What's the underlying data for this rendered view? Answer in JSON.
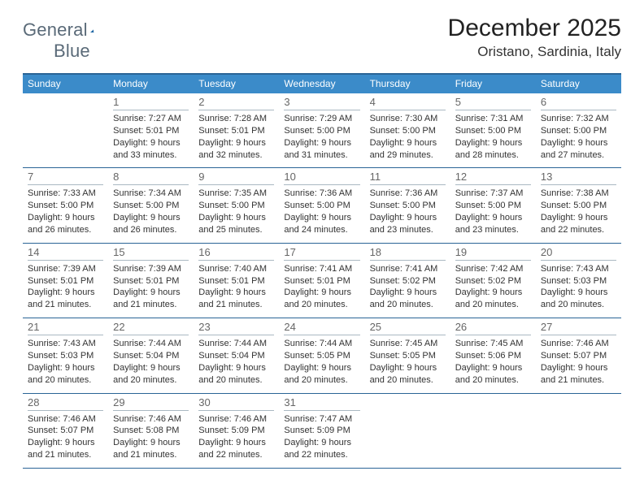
{
  "brand": {
    "name_a": "General",
    "name_b": "Blue",
    "accent": "#2b7bbf",
    "muted": "#5a6a78",
    "sail_fill": "#1e66a3"
  },
  "title": "December 2025",
  "location": "Oristano, Sardinia, Italy",
  "colors": {
    "header_bg": "#3b8bc9",
    "header_fg": "#ffffff",
    "rule": "#2a6496",
    "daynum": "#666666",
    "dayrule": "#aab8c2",
    "text": "#333333",
    "bg": "#ffffff"
  },
  "day_labels": [
    "Sunday",
    "Monday",
    "Tuesday",
    "Wednesday",
    "Thursday",
    "Friday",
    "Saturday"
  ],
  "weeks": [
    [
      {
        "day": "",
        "sunrise": "",
        "sunset": "",
        "daylight": ""
      },
      {
        "day": "1",
        "sunrise": "Sunrise: 7:27 AM",
        "sunset": "Sunset: 5:01 PM",
        "daylight": "Daylight: 9 hours and 33 minutes."
      },
      {
        "day": "2",
        "sunrise": "Sunrise: 7:28 AM",
        "sunset": "Sunset: 5:01 PM",
        "daylight": "Daylight: 9 hours and 32 minutes."
      },
      {
        "day": "3",
        "sunrise": "Sunrise: 7:29 AM",
        "sunset": "Sunset: 5:00 PM",
        "daylight": "Daylight: 9 hours and 31 minutes."
      },
      {
        "day": "4",
        "sunrise": "Sunrise: 7:30 AM",
        "sunset": "Sunset: 5:00 PM",
        "daylight": "Daylight: 9 hours and 29 minutes."
      },
      {
        "day": "5",
        "sunrise": "Sunrise: 7:31 AM",
        "sunset": "Sunset: 5:00 PM",
        "daylight": "Daylight: 9 hours and 28 minutes."
      },
      {
        "day": "6",
        "sunrise": "Sunrise: 7:32 AM",
        "sunset": "Sunset: 5:00 PM",
        "daylight": "Daylight: 9 hours and 27 minutes."
      }
    ],
    [
      {
        "day": "7",
        "sunrise": "Sunrise: 7:33 AM",
        "sunset": "Sunset: 5:00 PM",
        "daylight": "Daylight: 9 hours and 26 minutes."
      },
      {
        "day": "8",
        "sunrise": "Sunrise: 7:34 AM",
        "sunset": "Sunset: 5:00 PM",
        "daylight": "Daylight: 9 hours and 26 minutes."
      },
      {
        "day": "9",
        "sunrise": "Sunrise: 7:35 AM",
        "sunset": "Sunset: 5:00 PM",
        "daylight": "Daylight: 9 hours and 25 minutes."
      },
      {
        "day": "10",
        "sunrise": "Sunrise: 7:36 AM",
        "sunset": "Sunset: 5:00 PM",
        "daylight": "Daylight: 9 hours and 24 minutes."
      },
      {
        "day": "11",
        "sunrise": "Sunrise: 7:36 AM",
        "sunset": "Sunset: 5:00 PM",
        "daylight": "Daylight: 9 hours and 23 minutes."
      },
      {
        "day": "12",
        "sunrise": "Sunrise: 7:37 AM",
        "sunset": "Sunset: 5:00 PM",
        "daylight": "Daylight: 9 hours and 23 minutes."
      },
      {
        "day": "13",
        "sunrise": "Sunrise: 7:38 AM",
        "sunset": "Sunset: 5:00 PM",
        "daylight": "Daylight: 9 hours and 22 minutes."
      }
    ],
    [
      {
        "day": "14",
        "sunrise": "Sunrise: 7:39 AM",
        "sunset": "Sunset: 5:01 PM",
        "daylight": "Daylight: 9 hours and 21 minutes."
      },
      {
        "day": "15",
        "sunrise": "Sunrise: 7:39 AM",
        "sunset": "Sunset: 5:01 PM",
        "daylight": "Daylight: 9 hours and 21 minutes."
      },
      {
        "day": "16",
        "sunrise": "Sunrise: 7:40 AM",
        "sunset": "Sunset: 5:01 PM",
        "daylight": "Daylight: 9 hours and 21 minutes."
      },
      {
        "day": "17",
        "sunrise": "Sunrise: 7:41 AM",
        "sunset": "Sunset: 5:01 PM",
        "daylight": "Daylight: 9 hours and 20 minutes."
      },
      {
        "day": "18",
        "sunrise": "Sunrise: 7:41 AM",
        "sunset": "Sunset: 5:02 PM",
        "daylight": "Daylight: 9 hours and 20 minutes."
      },
      {
        "day": "19",
        "sunrise": "Sunrise: 7:42 AM",
        "sunset": "Sunset: 5:02 PM",
        "daylight": "Daylight: 9 hours and 20 minutes."
      },
      {
        "day": "20",
        "sunrise": "Sunrise: 7:43 AM",
        "sunset": "Sunset: 5:03 PM",
        "daylight": "Daylight: 9 hours and 20 minutes."
      }
    ],
    [
      {
        "day": "21",
        "sunrise": "Sunrise: 7:43 AM",
        "sunset": "Sunset: 5:03 PM",
        "daylight": "Daylight: 9 hours and 20 minutes."
      },
      {
        "day": "22",
        "sunrise": "Sunrise: 7:44 AM",
        "sunset": "Sunset: 5:04 PM",
        "daylight": "Daylight: 9 hours and 20 minutes."
      },
      {
        "day": "23",
        "sunrise": "Sunrise: 7:44 AM",
        "sunset": "Sunset: 5:04 PM",
        "daylight": "Daylight: 9 hours and 20 minutes."
      },
      {
        "day": "24",
        "sunrise": "Sunrise: 7:44 AM",
        "sunset": "Sunset: 5:05 PM",
        "daylight": "Daylight: 9 hours and 20 minutes."
      },
      {
        "day": "25",
        "sunrise": "Sunrise: 7:45 AM",
        "sunset": "Sunset: 5:05 PM",
        "daylight": "Daylight: 9 hours and 20 minutes."
      },
      {
        "day": "26",
        "sunrise": "Sunrise: 7:45 AM",
        "sunset": "Sunset: 5:06 PM",
        "daylight": "Daylight: 9 hours and 20 minutes."
      },
      {
        "day": "27",
        "sunrise": "Sunrise: 7:46 AM",
        "sunset": "Sunset: 5:07 PM",
        "daylight": "Daylight: 9 hours and 21 minutes."
      }
    ],
    [
      {
        "day": "28",
        "sunrise": "Sunrise: 7:46 AM",
        "sunset": "Sunset: 5:07 PM",
        "daylight": "Daylight: 9 hours and 21 minutes."
      },
      {
        "day": "29",
        "sunrise": "Sunrise: 7:46 AM",
        "sunset": "Sunset: 5:08 PM",
        "daylight": "Daylight: 9 hours and 21 minutes."
      },
      {
        "day": "30",
        "sunrise": "Sunrise: 7:46 AM",
        "sunset": "Sunset: 5:09 PM",
        "daylight": "Daylight: 9 hours and 22 minutes."
      },
      {
        "day": "31",
        "sunrise": "Sunrise: 7:47 AM",
        "sunset": "Sunset: 5:09 PM",
        "daylight": "Daylight: 9 hours and 22 minutes."
      },
      {
        "day": "",
        "sunrise": "",
        "sunset": "",
        "daylight": ""
      },
      {
        "day": "",
        "sunrise": "",
        "sunset": "",
        "daylight": ""
      },
      {
        "day": "",
        "sunrise": "",
        "sunset": "",
        "daylight": ""
      }
    ]
  ]
}
